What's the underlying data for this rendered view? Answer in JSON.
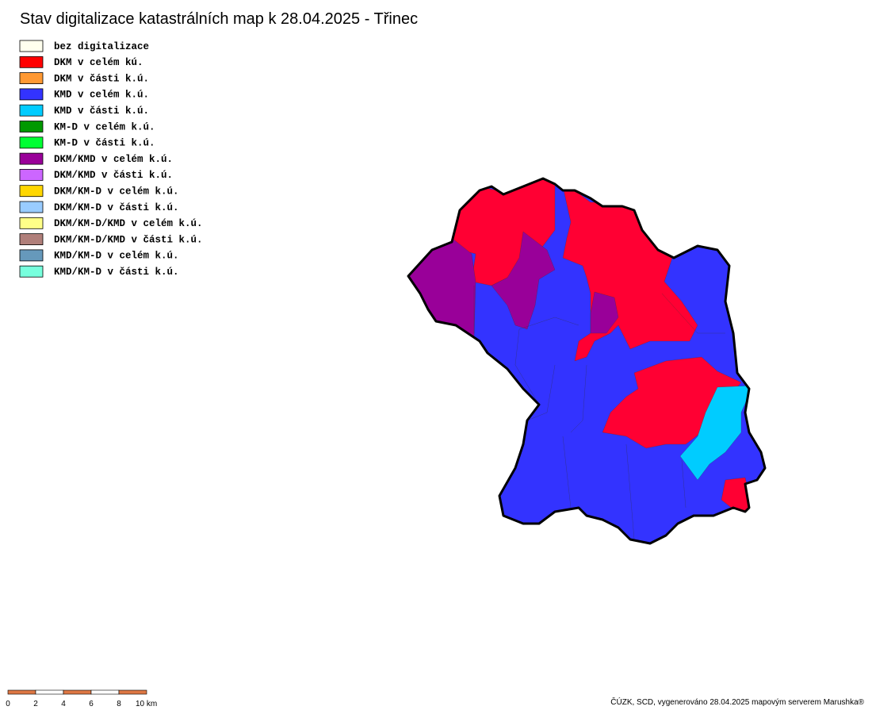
{
  "header": {
    "title": "Stav digitalizace katastrálních map k 28.04.2025 - Třinec"
  },
  "legend": [
    {
      "label": "bez digitalizace",
      "color": "#ffffee"
    },
    {
      "label": "DKM v celém kú.",
      "color": "#ff0000"
    },
    {
      "label": "DKM v části k.ú.",
      "color": "#ff9933"
    },
    {
      "label": "KMD v celém k.ú.",
      "color": "#3333ff"
    },
    {
      "label": "KMD v části k.ú.",
      "color": "#00ccff"
    },
    {
      "label": "KM-D v celém k.ú.",
      "color": "#009900"
    },
    {
      "label": "KM-D v části k.ú.",
      "color": "#00ff33"
    },
    {
      "label": "DKM/KMD v celém k.ú.",
      "color": "#990099"
    },
    {
      "label": "DKM/KMD v části k.ú.",
      "color": "#cc66ff"
    },
    {
      "label": "DKM/KM-D v celém k.ú.",
      "color": "#ffd700"
    },
    {
      "label": "DKM/KM-D v části k.ú.",
      "color": "#99ccff"
    },
    {
      "label": "DKM/KM-D/KMD v celém k.ú.",
      "color": "#ffff88"
    },
    {
      "label": "DKM/KM-D/KMD v části k.ú.",
      "color": "#b07f7a"
    },
    {
      "label": "KMD/KM-D v celém k.ú.",
      "color": "#6699bb"
    },
    {
      "label": "KMD/KM-D v části k.ú.",
      "color": "#77ffdd"
    }
  ],
  "scale_bar": {
    "labels": [
      "0",
      "2",
      "4",
      "6",
      "8",
      "10 km"
    ]
  },
  "footer": {
    "credit": "ČÚZK, SCD, vygenerováno 28.04.2025 mapovým serverem Marushka®"
  }
}
